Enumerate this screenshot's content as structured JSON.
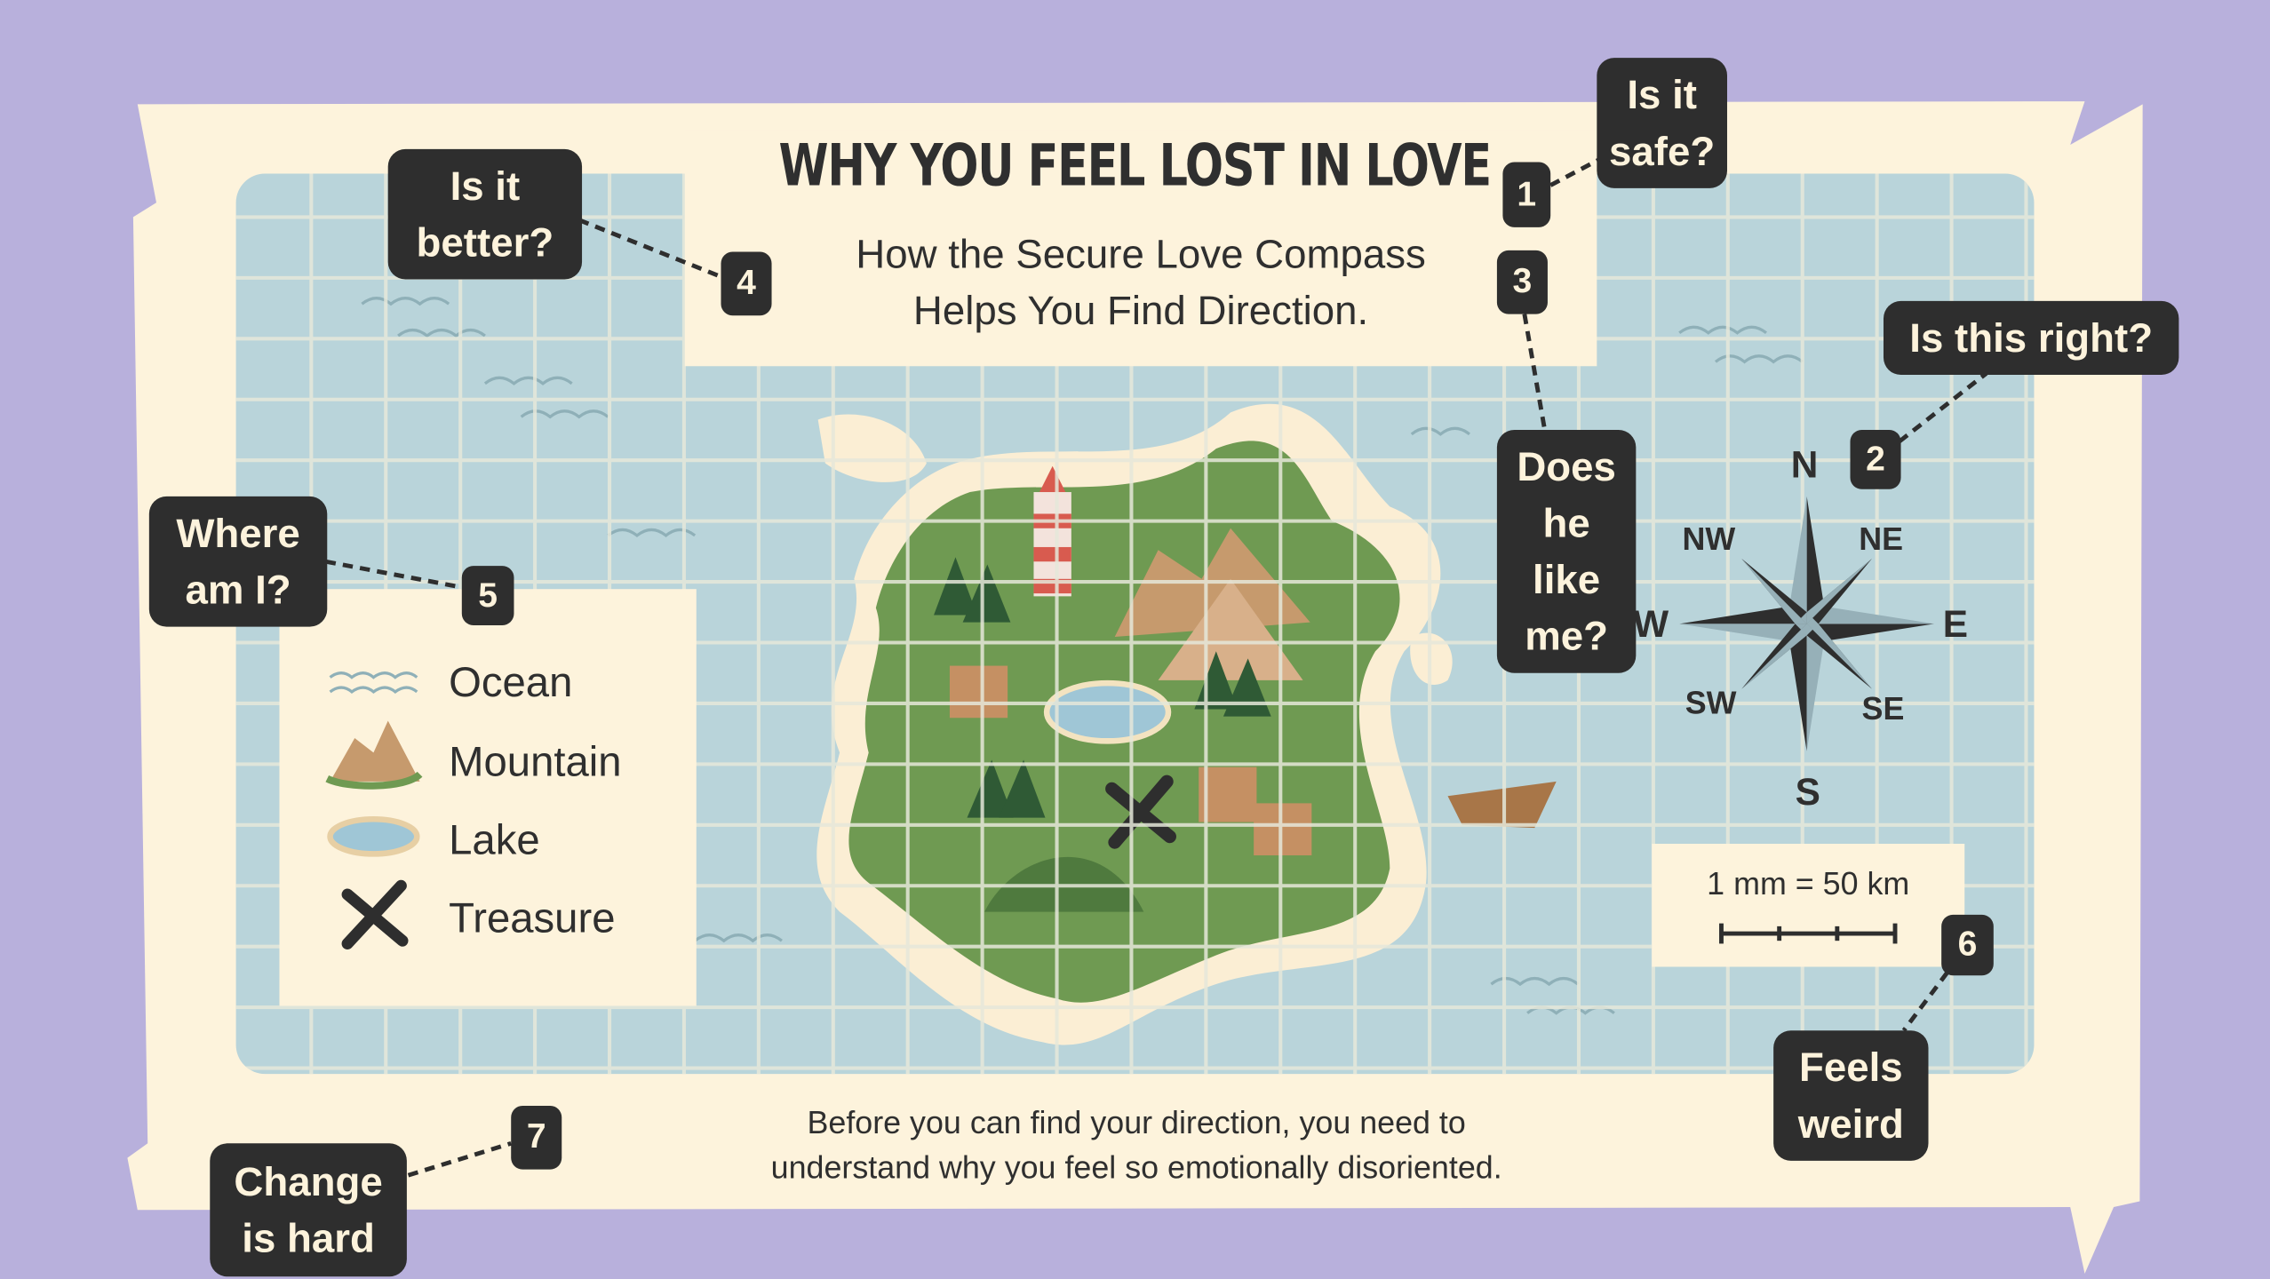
{
  "title": "WHY YOU FEEL LOST IN LOVE",
  "subtitle": [
    "How the Secure Love Compass",
    "Helps You Find Direction."
  ],
  "footer": [
    "Before you can find your direction, you need to",
    "understand why you feel so emotionally disoriented."
  ],
  "legend": [
    {
      "icon": "ocean-waves-icon",
      "label": "Ocean"
    },
    {
      "icon": "mountain-icon",
      "label": "Mountain"
    },
    {
      "icon": "lake-icon",
      "label": "Lake"
    },
    {
      "icon": "treasure-x-icon",
      "label": "Treasure"
    }
  ],
  "compass": {
    "n": "N",
    "ne": "NE",
    "e": "E",
    "se": "SE",
    "s": "S",
    "sw": "SW",
    "w": "W",
    "nw": "NW"
  },
  "scale": {
    "label": "1 mm = 50 km"
  },
  "callouts": [
    {
      "number": "1",
      "text": "Is it safe?"
    },
    {
      "number": "2",
      "text": "Is this right?"
    },
    {
      "number": "3",
      "text": "Does he like me?"
    },
    {
      "number": "4",
      "text": "Is it better?"
    },
    {
      "number": "5",
      "text": "Where am I?"
    },
    {
      "number": "6",
      "text": "Feels weird"
    },
    {
      "number": "7",
      "text": "Change is hard"
    }
  ],
  "colors": {
    "background": "#b8b0dc",
    "parchment": "#fdf3dc",
    "ocean": "#b9d4da",
    "ink": "#2e2e2e",
    "island": "#6f9a52"
  }
}
